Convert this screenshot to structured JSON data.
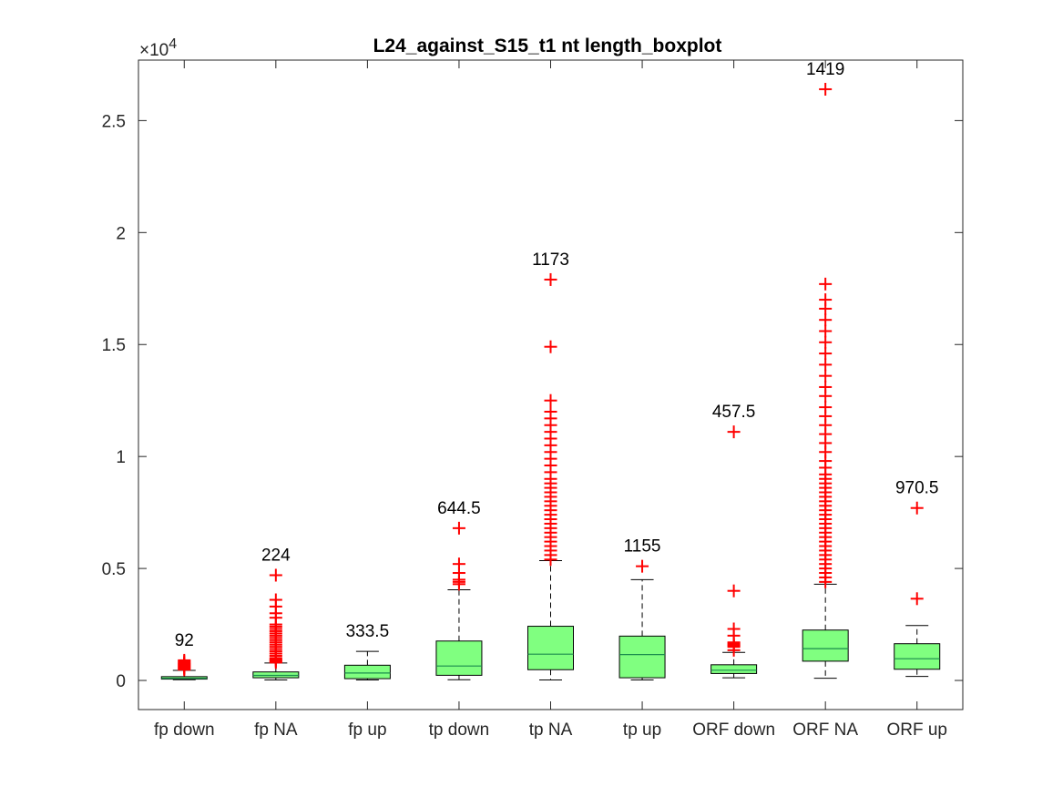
{
  "chart_data": {
    "type": "boxplot",
    "title": "L24_against_S15_t1 nt length_boxplot",
    "xlabel": "",
    "ylabel": "",
    "y_multiplier_label": "×10",
    "y_multiplier_exponent": "4",
    "ylim": [
      -1300,
      27700
    ],
    "y_ticks": [
      0,
      5000,
      10000,
      15000,
      20000,
      25000
    ],
    "y_tick_labels": [
      "0",
      "0.5",
      "1",
      "1.5",
      "2",
      "2.5"
    ],
    "categories": [
      "fp down",
      "fp NA",
      "fp up",
      "tp down",
      "tp NA",
      "tp up",
      "ORF down",
      "ORF NA",
      "ORF up"
    ],
    "box_color": "#80ff80",
    "outlier_color": "#ff0000",
    "median_color": "#1a8c4d",
    "boxes": [
      {
        "name": "fp down",
        "label": "92",
        "whisker_low": 30,
        "q1": 60,
        "median": 92,
        "q3": 170,
        "whisker_high": 450,
        "outliers": [
          480,
          520,
          560,
          600,
          640,
          680,
          720,
          760,
          800,
          850,
          900
        ]
      },
      {
        "name": "fp NA",
        "label": "224",
        "whisker_low": 20,
        "q1": 120,
        "median": 224,
        "q3": 380,
        "whisker_high": 780,
        "outliers": [
          800,
          850,
          900,
          950,
          1000,
          1100,
          1200,
          1300,
          1400,
          1500,
          1600,
          1700,
          1800,
          1900,
          2000,
          2100,
          2200,
          2300,
          2400,
          2500,
          2800,
          3000,
          3300,
          3600,
          4700
        ]
      },
      {
        "name": "fp up",
        "label": "333.5",
        "whisker_low": 20,
        "q1": 80,
        "median": 333.5,
        "q3": 680,
        "whisker_high": 1300,
        "outliers": []
      },
      {
        "name": "tp down",
        "label": "644.5",
        "whisker_low": 30,
        "q1": 230,
        "median": 644.5,
        "q3": 1760,
        "whisker_high": 4050,
        "outliers": [
          4300,
          4400,
          4500,
          4800,
          5200,
          6800
        ]
      },
      {
        "name": "tp NA",
        "label": "1173",
        "whisker_low": 20,
        "q1": 480,
        "median": 1173,
        "q3": 2420,
        "whisker_high": 5350,
        "outliers": [
          5400,
          5600,
          5800,
          6000,
          6200,
          6400,
          6600,
          6800,
          7000,
          7200,
          7400,
          7600,
          7800,
          8000,
          8200,
          8400,
          8600,
          8800,
          9000,
          9300,
          9600,
          9900,
          10200,
          10500,
          10800,
          11100,
          11400,
          11700,
          12000,
          12500,
          14900,
          17900
        ]
      },
      {
        "name": "tp up",
        "label": "1155",
        "whisker_low": 20,
        "q1": 120,
        "median": 1155,
        "q3": 1980,
        "whisker_high": 4500,
        "outliers": [
          5100
        ]
      },
      {
        "name": "ORF down",
        "label": "457.5",
        "whisker_low": 120,
        "q1": 310,
        "median": 457.5,
        "q3": 700,
        "whisker_high": 1250,
        "outliers": [
          1350,
          1500,
          1550,
          1600,
          1650,
          1700,
          2000,
          2300,
          4000,
          11100
        ]
      },
      {
        "name": "ORF NA",
        "label": "1419",
        "whisker_low": 100,
        "q1": 860,
        "median": 1419,
        "q3": 2250,
        "whisker_high": 4300,
        "outliers": [
          4400,
          4600,
          4800,
          5000,
          5200,
          5400,
          5600,
          5800,
          6000,
          6200,
          6400,
          6600,
          6800,
          7000,
          7200,
          7400,
          7600,
          7800,
          8000,
          8200,
          8400,
          8600,
          8800,
          9000,
          9200,
          9500,
          9800,
          10200,
          10600,
          11000,
          11400,
          11800,
          12200,
          12700,
          13100,
          13600,
          14100,
          14600,
          15100,
          15600,
          16100,
          16600,
          17000,
          17700,
          26400
        ]
      },
      {
        "name": "ORF up",
        "label": "970.5",
        "whisker_low": 180,
        "q1": 500,
        "median": 970.5,
        "q3": 1640,
        "whisker_high": 2450,
        "outliers": [
          3650,
          7700
        ]
      }
    ]
  }
}
